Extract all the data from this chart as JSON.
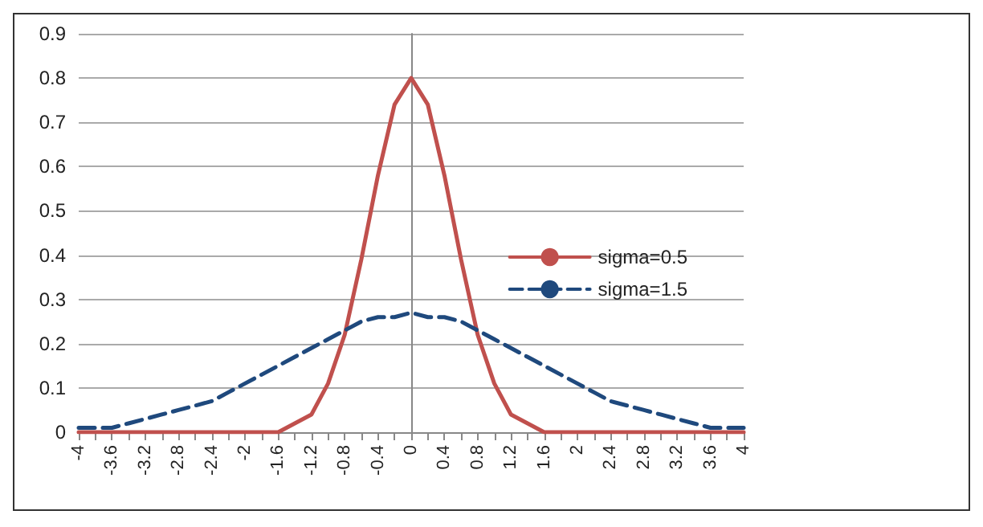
{
  "chart_data": {
    "type": "line",
    "x": [
      -4,
      -3.8,
      -3.6,
      -3.4,
      -3.2,
      -3,
      -2.8,
      -2.6,
      -2.4,
      -2.2,
      -2,
      -1.8,
      -1.6,
      -1.4,
      -1.2,
      -1,
      -0.8,
      -0.6,
      -0.4,
      -0.2,
      0,
      0.2,
      0.4,
      0.6,
      0.8,
      1,
      1.2,
      1.4,
      1.6,
      1.8,
      2,
      2.2,
      2.4,
      2.6,
      2.8,
      3,
      3.2,
      3.4,
      3.6,
      3.8,
      4
    ],
    "series": [
      {
        "name": "sigma=0.5",
        "color": "#c0504d",
        "line_style": "solid",
        "values": [
          0,
          0,
          0,
          0,
          0,
          0,
          0,
          0,
          0,
          0,
          0,
          0,
          0,
          0.02,
          0.04,
          0.11,
          0.22,
          0.39,
          0.58,
          0.74,
          0.8,
          0.74,
          0.58,
          0.39,
          0.22,
          0.11,
          0.04,
          0.02,
          0,
          0,
          0,
          0,
          0,
          0,
          0,
          0,
          0,
          0,
          0,
          0,
          0
        ]
      },
      {
        "name": "sigma=1.5",
        "color": "#1f497d",
        "line_style": "dashed",
        "values": [
          0.01,
          0.01,
          0.01,
          0.02,
          0.03,
          0.04,
          0.05,
          0.06,
          0.07,
          0.09,
          0.11,
          0.13,
          0.15,
          0.17,
          0.19,
          0.21,
          0.23,
          0.25,
          0.26,
          0.26,
          0.27,
          0.26,
          0.26,
          0.25,
          0.23,
          0.21,
          0.19,
          0.17,
          0.15,
          0.13,
          0.11,
          0.09,
          0.07,
          0.06,
          0.05,
          0.04,
          0.03,
          0.02,
          0.01,
          0.01,
          0.01
        ]
      }
    ],
    "xlim": [
      -4,
      4
    ],
    "xticks": [
      -4,
      {
        "value": -3.8,
        "label": null
      },
      -3.6,
      {
        "value": -3.4,
        "label": null
      },
      -3.2,
      {
        "value": -3,
        "label": null
      },
      -2.8,
      {
        "value": -2.6,
        "label": null
      },
      -2.4,
      {
        "value": -2.2,
        "label": null
      },
      -2,
      {
        "value": -1.8,
        "label": null
      },
      -1.6,
      {
        "value": -1.4,
        "label": null
      },
      -1.2,
      {
        "value": -1,
        "label": null
      },
      -0.8,
      {
        "value": -0.6,
        "label": null
      },
      -0.4,
      {
        "value": -0.2,
        "label": null
      },
      0,
      {
        "value": 0.2,
        "label": null
      },
      0.4,
      {
        "value": 0.6,
        "label": null
      },
      0.8,
      {
        "value": 1,
        "label": null
      },
      1.2,
      {
        "value": 1.4,
        "label": null
      },
      1.6,
      {
        "value": 1.8,
        "label": null
      },
      2,
      {
        "value": 2.2,
        "label": null
      },
      2.4,
      {
        "value": 2.6,
        "label": null
      },
      2.8,
      {
        "value": 3,
        "label": null
      },
      3.2,
      {
        "value": 3.4,
        "label": null
      },
      3.6,
      {
        "value": 3.8,
        "label": null
      },
      4
    ],
    "ylim": [
      0,
      0.9
    ],
    "yticks": [
      0,
      0.1,
      0.2,
      0.3,
      0.4,
      0.5,
      0.6,
      0.7,
      0.8,
      0.9
    ],
    "grid": "y",
    "legend": "right",
    "marker": "none"
  }
}
